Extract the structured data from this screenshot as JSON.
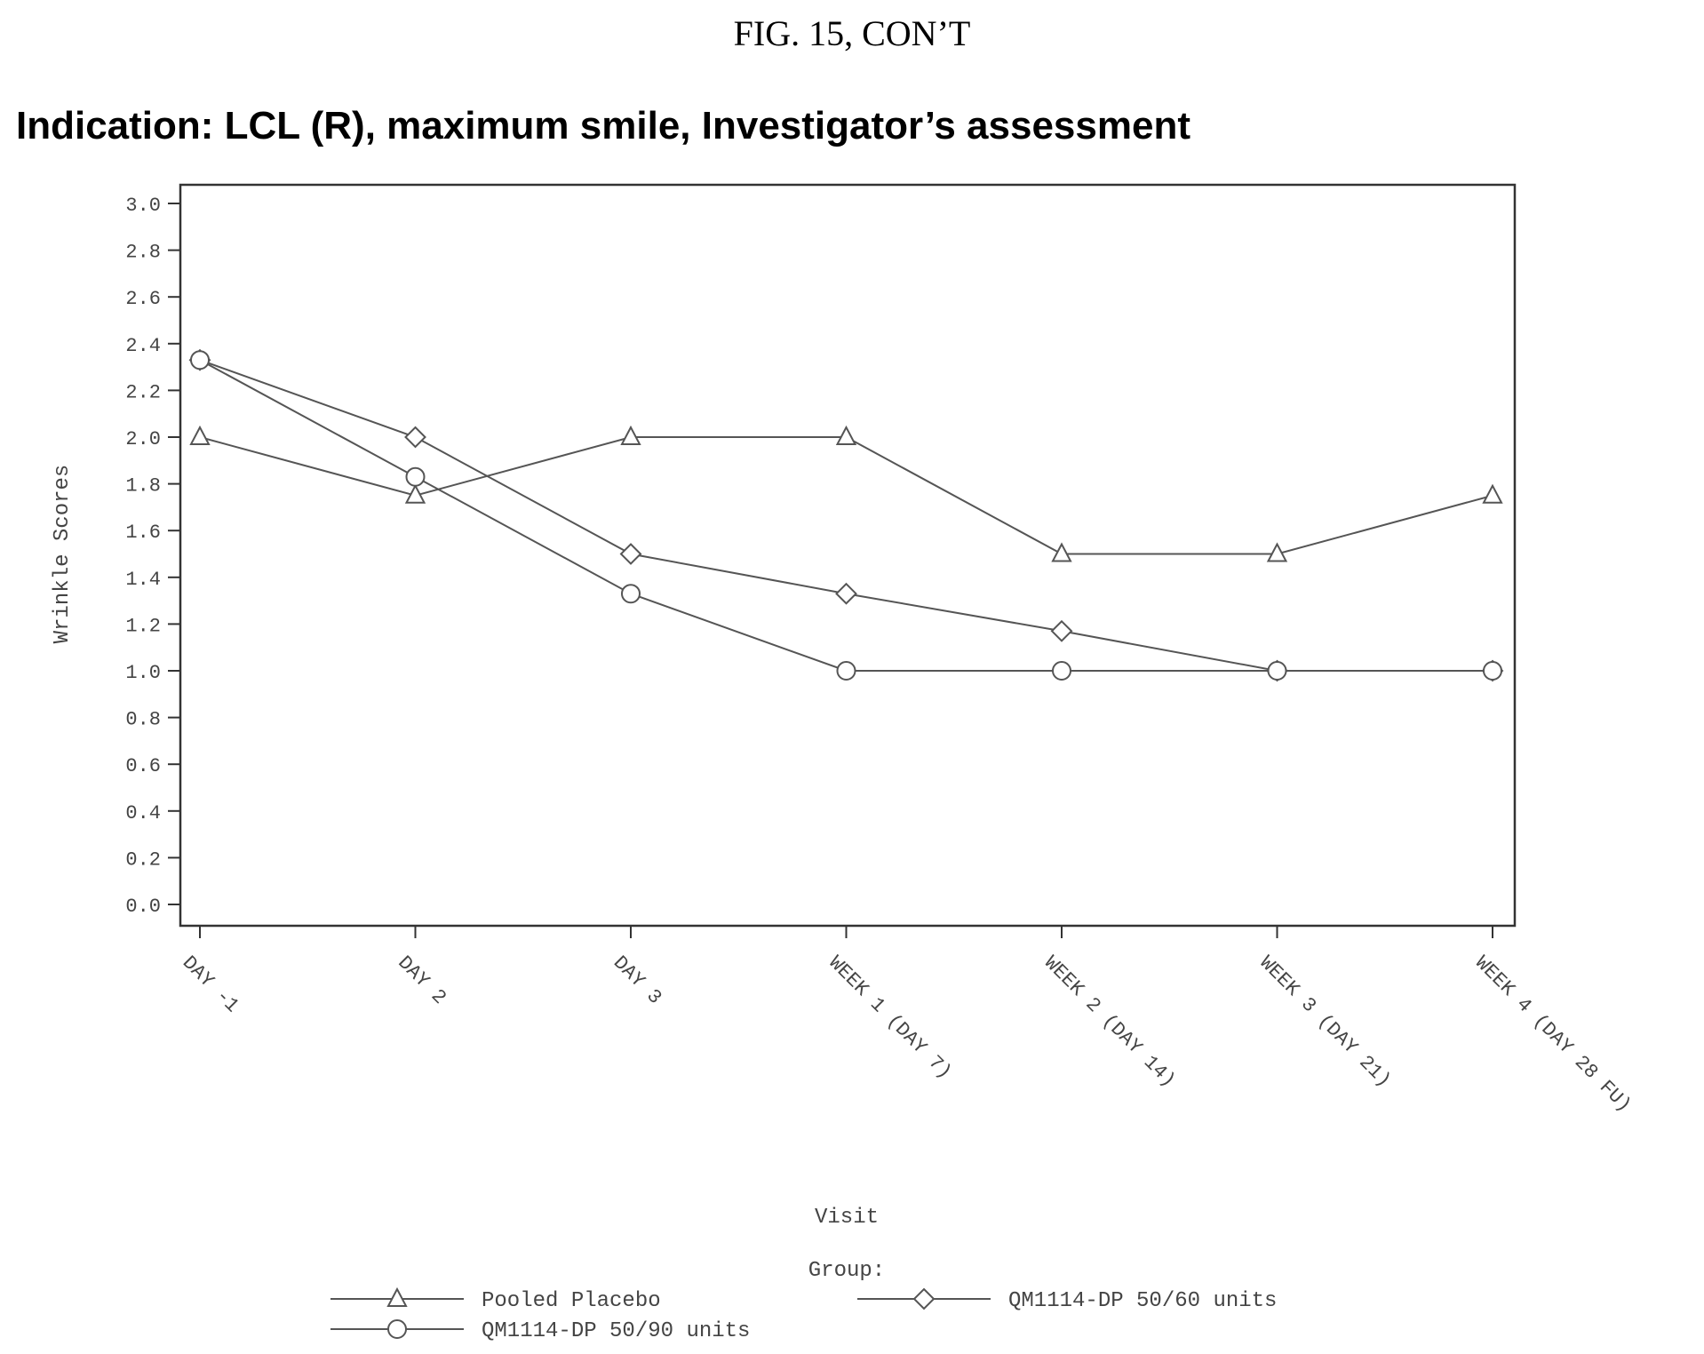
{
  "figure_label": "FIG. 15, CON’T",
  "chart_data": {
    "type": "line",
    "title": "Indication: LCL (R), maximum smile, Investigator’s assessment",
    "xlabel": "Visit",
    "ylabel": "Wrinkle Scores",
    "ylim": [
      0.0,
      3.0
    ],
    "y_ticks": [
      "0.0",
      "0.2",
      "0.4",
      "0.6",
      "0.8",
      "1.0",
      "1.2",
      "1.4",
      "1.6",
      "1.8",
      "2.0",
      "2.2",
      "2.4",
      "2.6",
      "2.8",
      "3.0"
    ],
    "categories": [
      "DAY -1",
      "DAY 2",
      "DAY 3",
      "WEEK 1 (DAY 7)",
      "WEEK 2 (DAY 14)",
      "WEEK 3 (DAY 21)",
      "WEEK 4 (DAY 28 FU)"
    ],
    "grid": false,
    "legend_title": "Group:",
    "legend_position": "bottom",
    "series": [
      {
        "name": "Pooled Placebo",
        "marker": "triangle",
        "values": [
          2.0,
          1.75,
          2.0,
          2.0,
          1.5,
          1.5,
          1.75
        ]
      },
      {
        "name": "QM1114-DP 50/60 units",
        "marker": "diamond",
        "values": [
          2.33,
          2.0,
          1.5,
          1.33,
          1.17,
          1.0,
          1.0
        ]
      },
      {
        "name": "QM1114-DP 50/90 units",
        "marker": "circle",
        "values": [
          2.33,
          1.83,
          1.33,
          1.0,
          1.0,
          1.0,
          1.0
        ]
      }
    ],
    "colors": {
      "line": "#555555",
      "axis": "#333333",
      "text": "#444444"
    }
  }
}
